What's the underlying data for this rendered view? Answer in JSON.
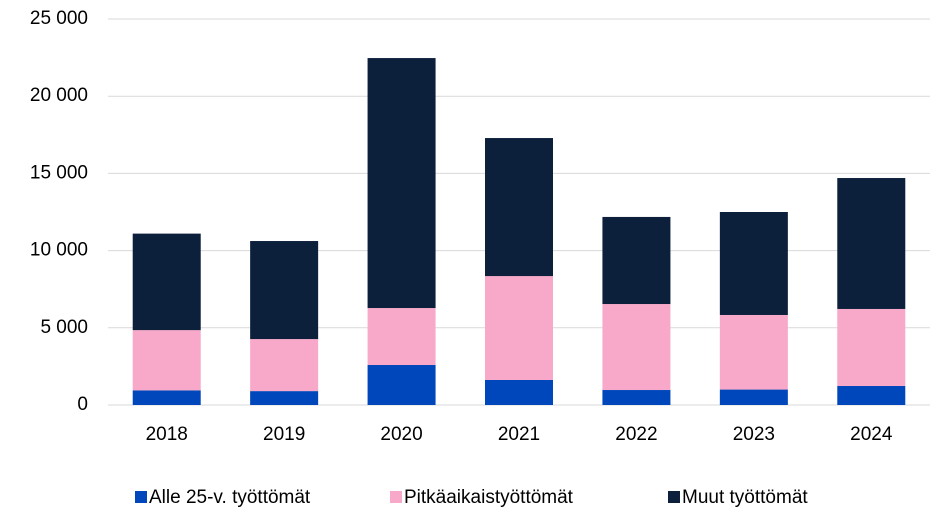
{
  "chart_data": {
    "type": "stacked_bar",
    "categories": [
      "2018",
      "2019",
      "2020",
      "2021",
      "2022",
      "2023",
      "2024"
    ],
    "series": [
      {
        "name": "Alle 25-v. työttömät",
        "color": "#0047bb",
        "values": [
          950,
          900,
          2590,
          1620,
          970,
          1000,
          1230
        ]
      },
      {
        "name": "Pitkäaikaistyöttömät",
        "color": "#f8a8c8",
        "values": [
          3900,
          3370,
          3690,
          6730,
          5570,
          4830,
          4990
        ]
      },
      {
        "name": "Muut työttömät",
        "color": "#0c1f3b",
        "values": [
          6250,
          6350,
          16190,
          8940,
          5640,
          6670,
          8480
        ]
      }
    ],
    "ylim": [
      0,
      25000
    ],
    "yticks": [
      0,
      {
        "value": 5000,
        "label": "5 000"
      },
      {
        "value": 10000,
        "label": "10 000"
      },
      {
        "value": 15000,
        "label": "15 000"
      },
      {
        "value": 20000,
        "label": "20 000"
      },
      {
        "value": 25000,
        "label": "25 000"
      }
    ],
    "grid": true,
    "legend": "bottom"
  }
}
